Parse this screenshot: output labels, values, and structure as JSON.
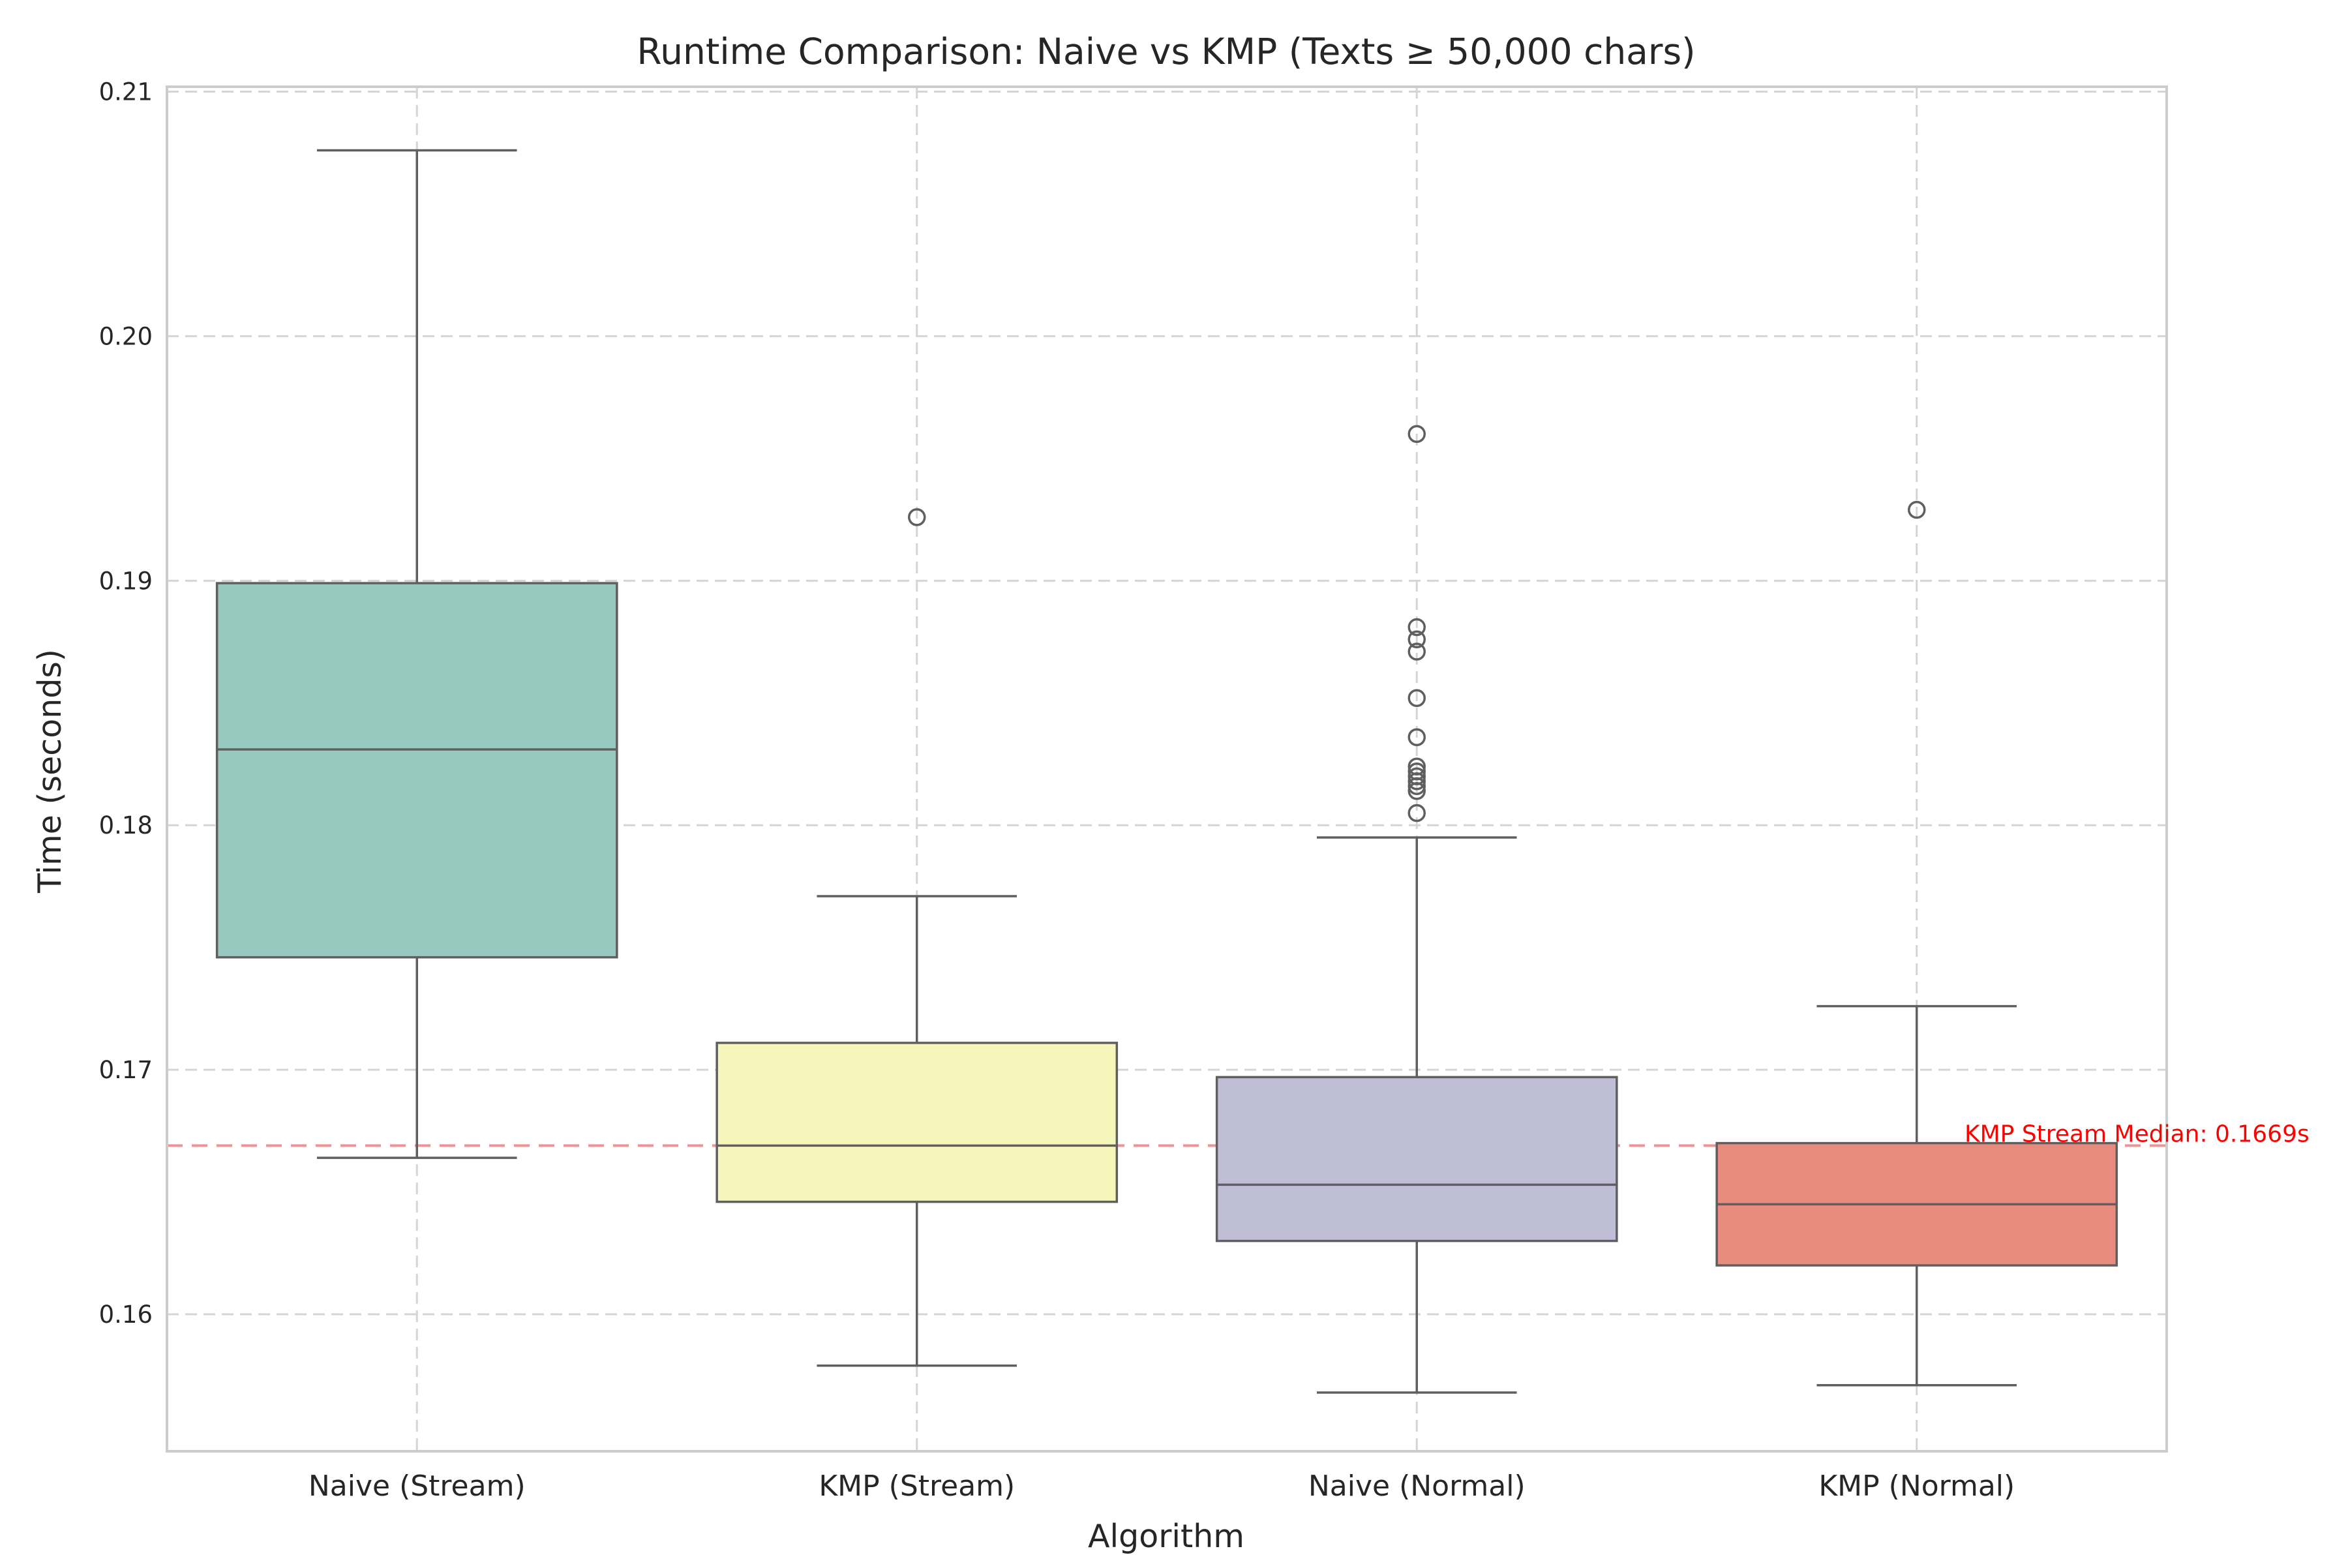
{
  "chart_data": {
    "type": "box",
    "title": "Runtime Comparison: Naive vs KMP (Texts ≥ 50,000 chars)",
    "xlabel": "Algorithm",
    "ylabel": "Time (seconds)",
    "ylim": [
      0.1544,
      0.2102
    ],
    "yticks": [
      0.16,
      0.17,
      0.18,
      0.19,
      0.2,
      0.21
    ],
    "ytick_labels": [
      "0.16",
      "0.17",
      "0.18",
      "0.19",
      "0.20",
      "0.21"
    ],
    "grid": true,
    "categories": [
      "Naive (Stream)",
      "KMP (Stream)",
      "Naive (Normal)",
      "KMP (Normal)"
    ],
    "boxes": [
      {
        "name": "Naive (Stream)",
        "color": "#97c9c1",
        "whisker_low": 0.1664,
        "q1": 0.1746,
        "median": 0.1831,
        "q3": 0.1899,
        "whisker_high": 0.2076,
        "outliers": []
      },
      {
        "name": "KMP (Stream)",
        "color": "#f6f5ba",
        "whisker_low": 0.1579,
        "q1": 0.1646,
        "median": 0.1669,
        "q3": 0.1711,
        "whisker_high": 0.1771,
        "outliers": [
          0.1926
        ]
      },
      {
        "name": "Naive (Normal)",
        "color": "#c0bdd7",
        "whisker_low": 0.1568,
        "q1": 0.163,
        "median": 0.1653,
        "q3": 0.1697,
        "whisker_high": 0.1795,
        "outliers": [
          0.196,
          0.1881,
          0.1876,
          0.1871,
          0.1852,
          0.1836,
          0.1824,
          0.1822,
          0.182,
          0.1818,
          0.1816,
          0.1814,
          0.1805
        ]
      },
      {
        "name": "KMP (Normal)",
        "color": "#e98c80",
        "whisker_low": 0.1571,
        "q1": 0.162,
        "median": 0.1645,
        "q3": 0.167,
        "whisker_high": 0.1726,
        "outliers": [
          0.1929
        ]
      }
    ],
    "reference_line": {
      "value": 0.1669,
      "label": "KMP Stream Median: 0.1669s",
      "color": "#e5383b",
      "style": "dashed"
    },
    "colors": {
      "box_edge": "#5f5f5f",
      "grid": "#d5d5d5",
      "frame": "#cccccc",
      "annotation": "#ff0000"
    }
  }
}
